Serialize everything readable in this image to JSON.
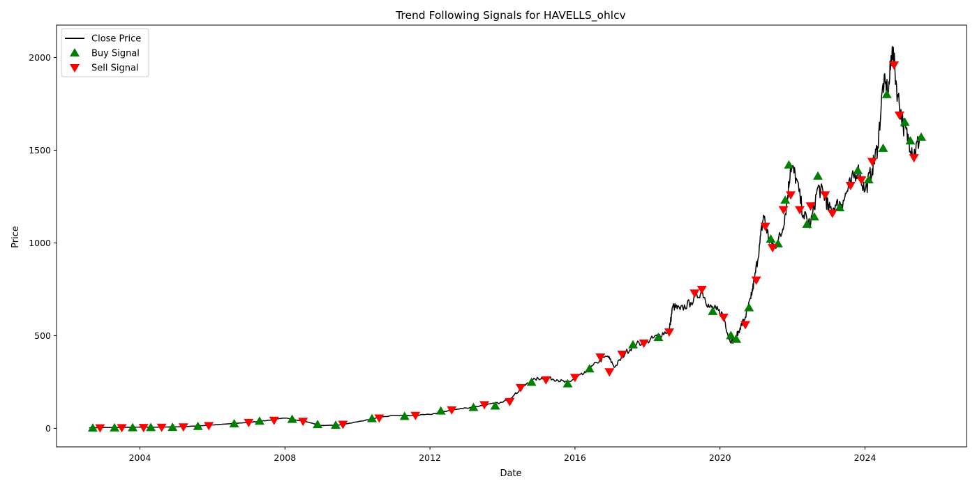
{
  "chart_data": {
    "type": "line",
    "title": "Trend Following Signals for HAVELLS_ohlcv",
    "xlabel": "Date",
    "ylabel": "Price",
    "xlim": [
      2001.7,
      2026.8
    ],
    "ylim": [
      -100,
      2175
    ],
    "x_ticks": [
      {
        "value": 2004,
        "label": "2004"
      },
      {
        "value": 2008,
        "label": "2008"
      },
      {
        "value": 2012,
        "label": "2012"
      },
      {
        "value": 2016,
        "label": "2016"
      },
      {
        "value": 2020,
        "label": "2020"
      },
      {
        "value": 2024,
        "label": "2024"
      }
    ],
    "y_ticks": [
      {
        "value": 0,
        "label": "0"
      },
      {
        "value": 500,
        "label": "500"
      },
      {
        "value": 1000,
        "label": "1000"
      },
      {
        "value": 1500,
        "label": "1500"
      },
      {
        "value": 2000,
        "label": "2000"
      }
    ],
    "grid": false,
    "legend_position": "top-left",
    "series": [
      {
        "name": "Close Price",
        "color": "#000000",
        "marker": "line",
        "points": [
          [
            2002.6,
            3
          ],
          [
            2003.0,
            4
          ],
          [
            2003.5,
            5
          ],
          [
            2004.0,
            6
          ],
          [
            2004.5,
            6
          ],
          [
            2005.0,
            8
          ],
          [
            2005.5,
            12
          ],
          [
            2006.0,
            18
          ],
          [
            2006.5,
            25
          ],
          [
            2007.0,
            32
          ],
          [
            2007.5,
            42
          ],
          [
            2008.0,
            55
          ],
          [
            2008.5,
            40
          ],
          [
            2009.0,
            15
          ],
          [
            2009.5,
            18
          ],
          [
            2010.0,
            35
          ],
          [
            2010.5,
            55
          ],
          [
            2011.0,
            70
          ],
          [
            2011.5,
            68
          ],
          [
            2012.0,
            75
          ],
          [
            2012.5,
            95
          ],
          [
            2013.0,
            110
          ],
          [
            2013.5,
            125
          ],
          [
            2014.0,
            140
          ],
          [
            2014.3,
            175
          ],
          [
            2014.6,
            230
          ],
          [
            2014.9,
            265
          ],
          [
            2015.2,
            275
          ],
          [
            2015.5,
            262
          ],
          [
            2015.8,
            245
          ],
          [
            2016.0,
            270
          ],
          [
            2016.3,
            300
          ],
          [
            2016.6,
            355
          ],
          [
            2016.9,
            390
          ],
          [
            2017.1,
            330
          ],
          [
            2017.4,
            410
          ],
          [
            2017.7,
            455
          ],
          [
            2018.0,
            470
          ],
          [
            2018.3,
            500
          ],
          [
            2018.6,
            530
          ],
          [
            2018.7,
            660
          ],
          [
            2018.9,
            640
          ],
          [
            2019.2,
            680
          ],
          [
            2019.5,
            740
          ],
          [
            2019.7,
            655
          ],
          [
            2019.9,
            640
          ],
          [
            2020.1,
            610
          ],
          [
            2020.25,
            480
          ],
          [
            2020.4,
            470
          ],
          [
            2020.55,
            540
          ],
          [
            2020.7,
            600
          ],
          [
            2020.85,
            700
          ],
          [
            2020.95,
            800
          ],
          [
            2021.1,
            1000
          ],
          [
            2021.2,
            1150
          ],
          [
            2021.35,
            1020
          ],
          [
            2021.5,
            980
          ],
          [
            2021.7,
            1050
          ],
          [
            2021.85,
            1220
          ],
          [
            2021.95,
            1420
          ],
          [
            2022.1,
            1350
          ],
          [
            2022.3,
            1150
          ],
          [
            2022.5,
            1100
          ],
          [
            2022.7,
            1300
          ],
          [
            2022.9,
            1250
          ],
          [
            2023.0,
            1180
          ],
          [
            2023.2,
            1200
          ],
          [
            2023.4,
            1230
          ],
          [
            2023.6,
            1320
          ],
          [
            2023.8,
            1400
          ],
          [
            2024.0,
            1280
          ],
          [
            2024.2,
            1400
          ],
          [
            2024.35,
            1520
          ],
          [
            2024.5,
            1860
          ],
          [
            2024.65,
            1820
          ],
          [
            2024.75,
            2060
          ],
          [
            2024.9,
            1800
          ],
          [
            2025.05,
            1640
          ],
          [
            2025.2,
            1560
          ],
          [
            2025.35,
            1480
          ],
          [
            2025.5,
            1560
          ]
        ]
      },
      {
        "name": "Buy Signal",
        "color": "#008000",
        "marker": "triangle-up",
        "points": [
          [
            2002.7,
            1
          ],
          [
            2003.3,
            2
          ],
          [
            2003.8,
            3
          ],
          [
            2004.3,
            4
          ],
          [
            2004.9,
            5
          ],
          [
            2005.6,
            10
          ],
          [
            2006.6,
            24
          ],
          [
            2007.3,
            38
          ],
          [
            2008.2,
            48
          ],
          [
            2008.9,
            20
          ],
          [
            2009.4,
            16
          ],
          [
            2010.4,
            52
          ],
          [
            2011.3,
            64
          ],
          [
            2012.3,
            93
          ],
          [
            2013.2,
            112
          ],
          [
            2013.8,
            120
          ],
          [
            2014.8,
            248
          ],
          [
            2015.8,
            240
          ],
          [
            2016.4,
            320
          ],
          [
            2017.6,
            450
          ],
          [
            2018.3,
            490
          ],
          [
            2019.8,
            630
          ],
          [
            2020.3,
            500
          ],
          [
            2020.45,
            480
          ],
          [
            2020.8,
            650
          ],
          [
            2021.4,
            1020
          ],
          [
            2021.6,
            995
          ],
          [
            2021.8,
            1230
          ],
          [
            2021.9,
            1420
          ],
          [
            2022.4,
            1100
          ],
          [
            2022.6,
            1140
          ],
          [
            2022.7,
            1360
          ],
          [
            2023.3,
            1190
          ],
          [
            2023.8,
            1390
          ],
          [
            2024.1,
            1340
          ],
          [
            2024.5,
            1510
          ],
          [
            2024.6,
            1800
          ],
          [
            2025.1,
            1650
          ],
          [
            2025.25,
            1550
          ],
          [
            2025.55,
            1570
          ]
        ]
      },
      {
        "name": "Sell Signal",
        "color": "#ff0000",
        "marker": "triangle-down",
        "points": [
          [
            2002.9,
            3
          ],
          [
            2003.5,
            4
          ],
          [
            2004.1,
            5
          ],
          [
            2004.6,
            6
          ],
          [
            2005.2,
            8
          ],
          [
            2005.9,
            15
          ],
          [
            2007.0,
            32
          ],
          [
            2007.7,
            44
          ],
          [
            2008.5,
            38
          ],
          [
            2009.6,
            22
          ],
          [
            2010.6,
            56
          ],
          [
            2011.6,
            70
          ],
          [
            2012.6,
            100
          ],
          [
            2013.5,
            128
          ],
          [
            2014.2,
            145
          ],
          [
            2014.5,
            220
          ],
          [
            2015.2,
            262
          ],
          [
            2016.0,
            275
          ],
          [
            2016.7,
            385
          ],
          [
            2016.95,
            305
          ],
          [
            2017.3,
            400
          ],
          [
            2017.9,
            460
          ],
          [
            2018.6,
            520
          ],
          [
            2019.3,
            730
          ],
          [
            2019.5,
            750
          ],
          [
            2020.1,
            600
          ],
          [
            2020.7,
            560
          ],
          [
            2021.0,
            800
          ],
          [
            2021.25,
            1090
          ],
          [
            2021.45,
            975
          ],
          [
            2021.75,
            1180
          ],
          [
            2021.95,
            1260
          ],
          [
            2022.2,
            1180
          ],
          [
            2022.5,
            1200
          ],
          [
            2022.9,
            1260
          ],
          [
            2023.1,
            1160
          ],
          [
            2023.6,
            1310
          ],
          [
            2023.9,
            1340
          ],
          [
            2024.2,
            1440
          ],
          [
            2024.8,
            1960
          ],
          [
            2024.95,
            1690
          ],
          [
            2025.35,
            1460
          ]
        ]
      }
    ]
  }
}
